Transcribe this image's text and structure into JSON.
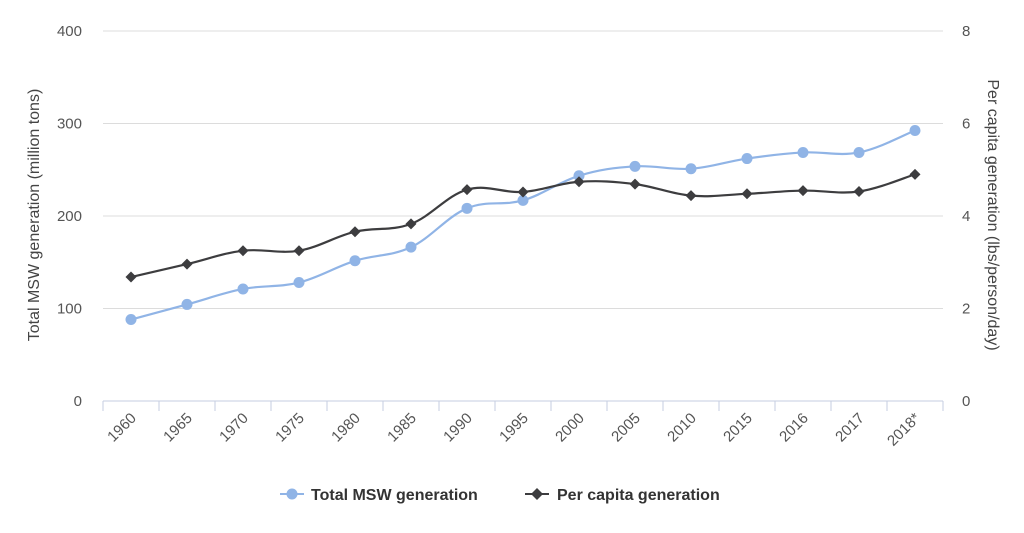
{
  "chart_data": {
    "type": "line",
    "categories": [
      "1960",
      "1965",
      "1970",
      "1975",
      "1980",
      "1985",
      "1990",
      "1995",
      "2000",
      "2005",
      "2010",
      "2015",
      "2016",
      "2017",
      "2018*"
    ],
    "series": [
      {
        "name": "Total MSW generation",
        "axis": "left",
        "color": "#90b4e6",
        "marker": "circle",
        "values": [
          88.1,
          104.4,
          121.1,
          128.1,
          151.6,
          166.3,
          208.3,
          216.9,
          243.5,
          253.7,
          251.1,
          262.1,
          268.7,
          268.7,
          292.4
        ]
      },
      {
        "name": "Per capita generation",
        "axis": "right",
        "color": "#3d3d3f",
        "marker": "diamond",
        "values": [
          2.68,
          2.96,
          3.25,
          3.25,
          3.66,
          3.83,
          4.57,
          4.52,
          4.74,
          4.69,
          4.44,
          4.48,
          4.55,
          4.53,
          4.9
        ]
      }
    ],
    "y_left": {
      "label": "Total MSW generation (million tons)",
      "ticks": [
        "0",
        "100",
        "200",
        "300",
        "400"
      ],
      "range": [
        0,
        400
      ]
    },
    "y_right": {
      "label": "Per capita generation (lbs/person/day)",
      "ticks": [
        "0",
        "2",
        "4",
        "6",
        "8"
      ],
      "range": [
        0,
        8
      ]
    },
    "grid": true,
    "legend": {
      "placement": "bottom-center",
      "items": [
        "Total MSW generation",
        "Per capita generation"
      ]
    }
  }
}
